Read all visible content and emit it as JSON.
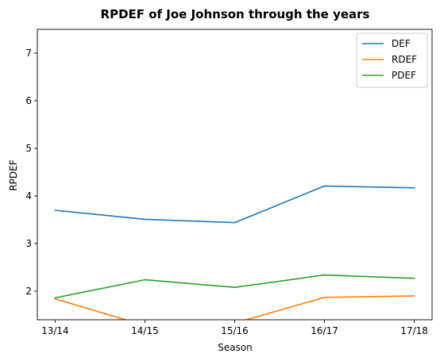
{
  "chart_data": {
    "type": "line",
    "title": "RPDEF of Joe Johnson through the years",
    "xlabel": "Season",
    "ylabel": "RPDEF",
    "categories": [
      "13/14",
      "14/15",
      "15/16",
      "16/17",
      "17/18"
    ],
    "ylim": [
      1.4,
      7.5
    ],
    "yticks": [
      2,
      3,
      4,
      5,
      6,
      7
    ],
    "grid": false,
    "legend_position": "top-right",
    "series": [
      {
        "name": "DEF",
        "color": "#1f77b4",
        "values": [
          3.7,
          3.51,
          3.44,
          4.21,
          4.17
        ]
      },
      {
        "name": "RDEF",
        "color": "#ff7f0e",
        "values": [
          1.84,
          1.28,
          1.33,
          1.87,
          1.9
        ]
      },
      {
        "name": "PDEF",
        "color": "#2ca02c",
        "values": [
          1.86,
          2.24,
          2.08,
          2.34,
          2.27
        ]
      }
    ]
  }
}
